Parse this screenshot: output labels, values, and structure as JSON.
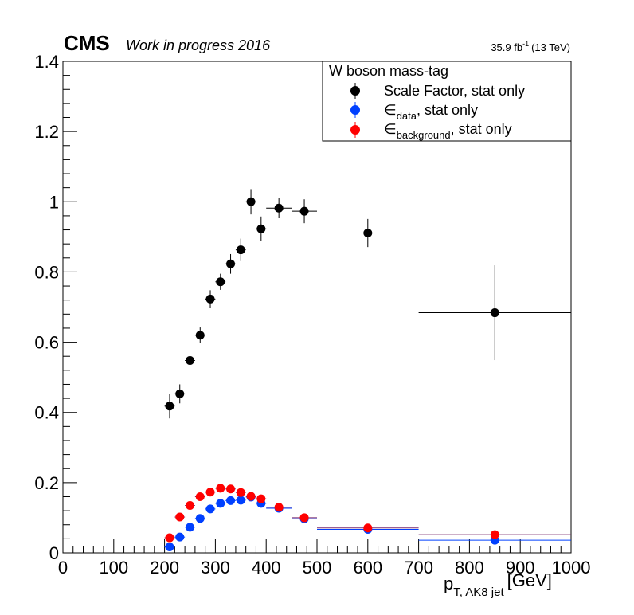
{
  "header": {
    "experiment": "CMS",
    "status": "Work in progress 2016",
    "lumi_value": "35.9 fb",
    "lumi_exp": "-1",
    "energy": "(13 TeV)"
  },
  "legend_title": "W boson mass-tag",
  "legend": [
    {
      "symbol": "",
      "sub": "",
      "text": "Scale Factor, stat only"
    },
    {
      "symbol": "∈",
      "sub": "data",
      "text": ", stat only"
    },
    {
      "symbol": "∈",
      "sub": "background",
      "text": ", stat only"
    }
  ],
  "xaxis": {
    "main": "p",
    "sub": "T, AK8 jet",
    "unit": "[GeV]"
  },
  "colors": {
    "sf": "#000000",
    "data": "#0040ff",
    "bkg": "#ff0000",
    "bkg_line": "#7a2a6e"
  },
  "chart_data": {
    "type": "scatter",
    "xlim": [
      0,
      1000
    ],
    "ylim": [
      0,
      1.4
    ],
    "x_ticks": [
      0,
      100,
      200,
      300,
      400,
      500,
      600,
      700,
      800,
      900,
      1000
    ],
    "y_ticks": [
      "0",
      "0.2",
      "0.4",
      "0.6",
      "0.8",
      "1",
      "1.2",
      "1.4"
    ],
    "grid": false,
    "legend_position": "top-right",
    "series": [
      {
        "key": "sf",
        "points": [
          {
            "x": 210,
            "xerr": 10,
            "y": 0.418,
            "yerr": 0.035
          },
          {
            "x": 230,
            "xerr": 10,
            "y": 0.453,
            "yerr": 0.027
          },
          {
            "x": 250,
            "xerr": 10,
            "y": 0.548,
            "yerr": 0.023
          },
          {
            "x": 270,
            "xerr": 10,
            "y": 0.62,
            "yerr": 0.022
          },
          {
            "x": 290,
            "xerr": 10,
            "y": 0.723,
            "yerr": 0.025
          },
          {
            "x": 310,
            "xerr": 10,
            "y": 0.772,
            "yerr": 0.023
          },
          {
            "x": 330,
            "xerr": 10,
            "y": 0.823,
            "yerr": 0.028
          },
          {
            "x": 350,
            "xerr": 10,
            "y": 0.863,
            "yerr": 0.032
          },
          {
            "x": 370,
            "xerr": 10,
            "y": 1.0,
            "yerr": 0.036
          },
          {
            "x": 390,
            "xerr": 10,
            "y": 0.923,
            "yerr": 0.035
          },
          {
            "x": 425,
            "xerr": 25,
            "y": 0.982,
            "yerr": 0.029
          },
          {
            "x": 475,
            "xerr": 25,
            "y": 0.973,
            "yerr": 0.034
          },
          {
            "x": 600,
            "xerr": 100,
            "y": 0.911,
            "yerr": 0.04
          },
          {
            "x": 850,
            "xerr": 150,
            "y": 0.684,
            "yerr": 0.135
          }
        ]
      },
      {
        "key": "data",
        "points": [
          {
            "x": 210,
            "xerr": 10,
            "y": 0.017
          },
          {
            "x": 230,
            "xerr": 10,
            "y": 0.045
          },
          {
            "x": 250,
            "xerr": 10,
            "y": 0.073
          },
          {
            "x": 270,
            "xerr": 10,
            "y": 0.098
          },
          {
            "x": 290,
            "xerr": 10,
            "y": 0.125
          },
          {
            "x": 310,
            "xerr": 10,
            "y": 0.141
          },
          {
            "x": 330,
            "xerr": 10,
            "y": 0.149
          },
          {
            "x": 350,
            "xerr": 10,
            "y": 0.15
          },
          {
            "x": 370,
            "xerr": 10,
            "y": 0.159
          },
          {
            "x": 390,
            "xerr": 10,
            "y": 0.141
          },
          {
            "x": 425,
            "xerr": 25,
            "y": 0.127
          },
          {
            "x": 475,
            "xerr": 25,
            "y": 0.097
          },
          {
            "x": 600,
            "xerr": 100,
            "y": 0.067
          },
          {
            "x": 850,
            "xerr": 150,
            "y": 0.036
          }
        ]
      },
      {
        "key": "bkg",
        "points": [
          {
            "x": 210,
            "xerr": 10,
            "y": 0.043
          },
          {
            "x": 230,
            "xerr": 10,
            "y": 0.102
          },
          {
            "x": 250,
            "xerr": 10,
            "y": 0.135
          },
          {
            "x": 270,
            "xerr": 10,
            "y": 0.16
          },
          {
            "x": 290,
            "xerr": 10,
            "y": 0.173
          },
          {
            "x": 310,
            "xerr": 10,
            "y": 0.184
          },
          {
            "x": 330,
            "xerr": 10,
            "y": 0.182
          },
          {
            "x": 350,
            "xerr": 10,
            "y": 0.172
          },
          {
            "x": 370,
            "xerr": 10,
            "y": 0.161
          },
          {
            "x": 390,
            "xerr": 10,
            "y": 0.154
          },
          {
            "x": 425,
            "xerr": 25,
            "y": 0.13
          },
          {
            "x": 475,
            "xerr": 25,
            "y": 0.1
          },
          {
            "x": 600,
            "xerr": 100,
            "y": 0.071
          },
          {
            "x": 850,
            "xerr": 150,
            "y": 0.052
          }
        ]
      }
    ]
  }
}
